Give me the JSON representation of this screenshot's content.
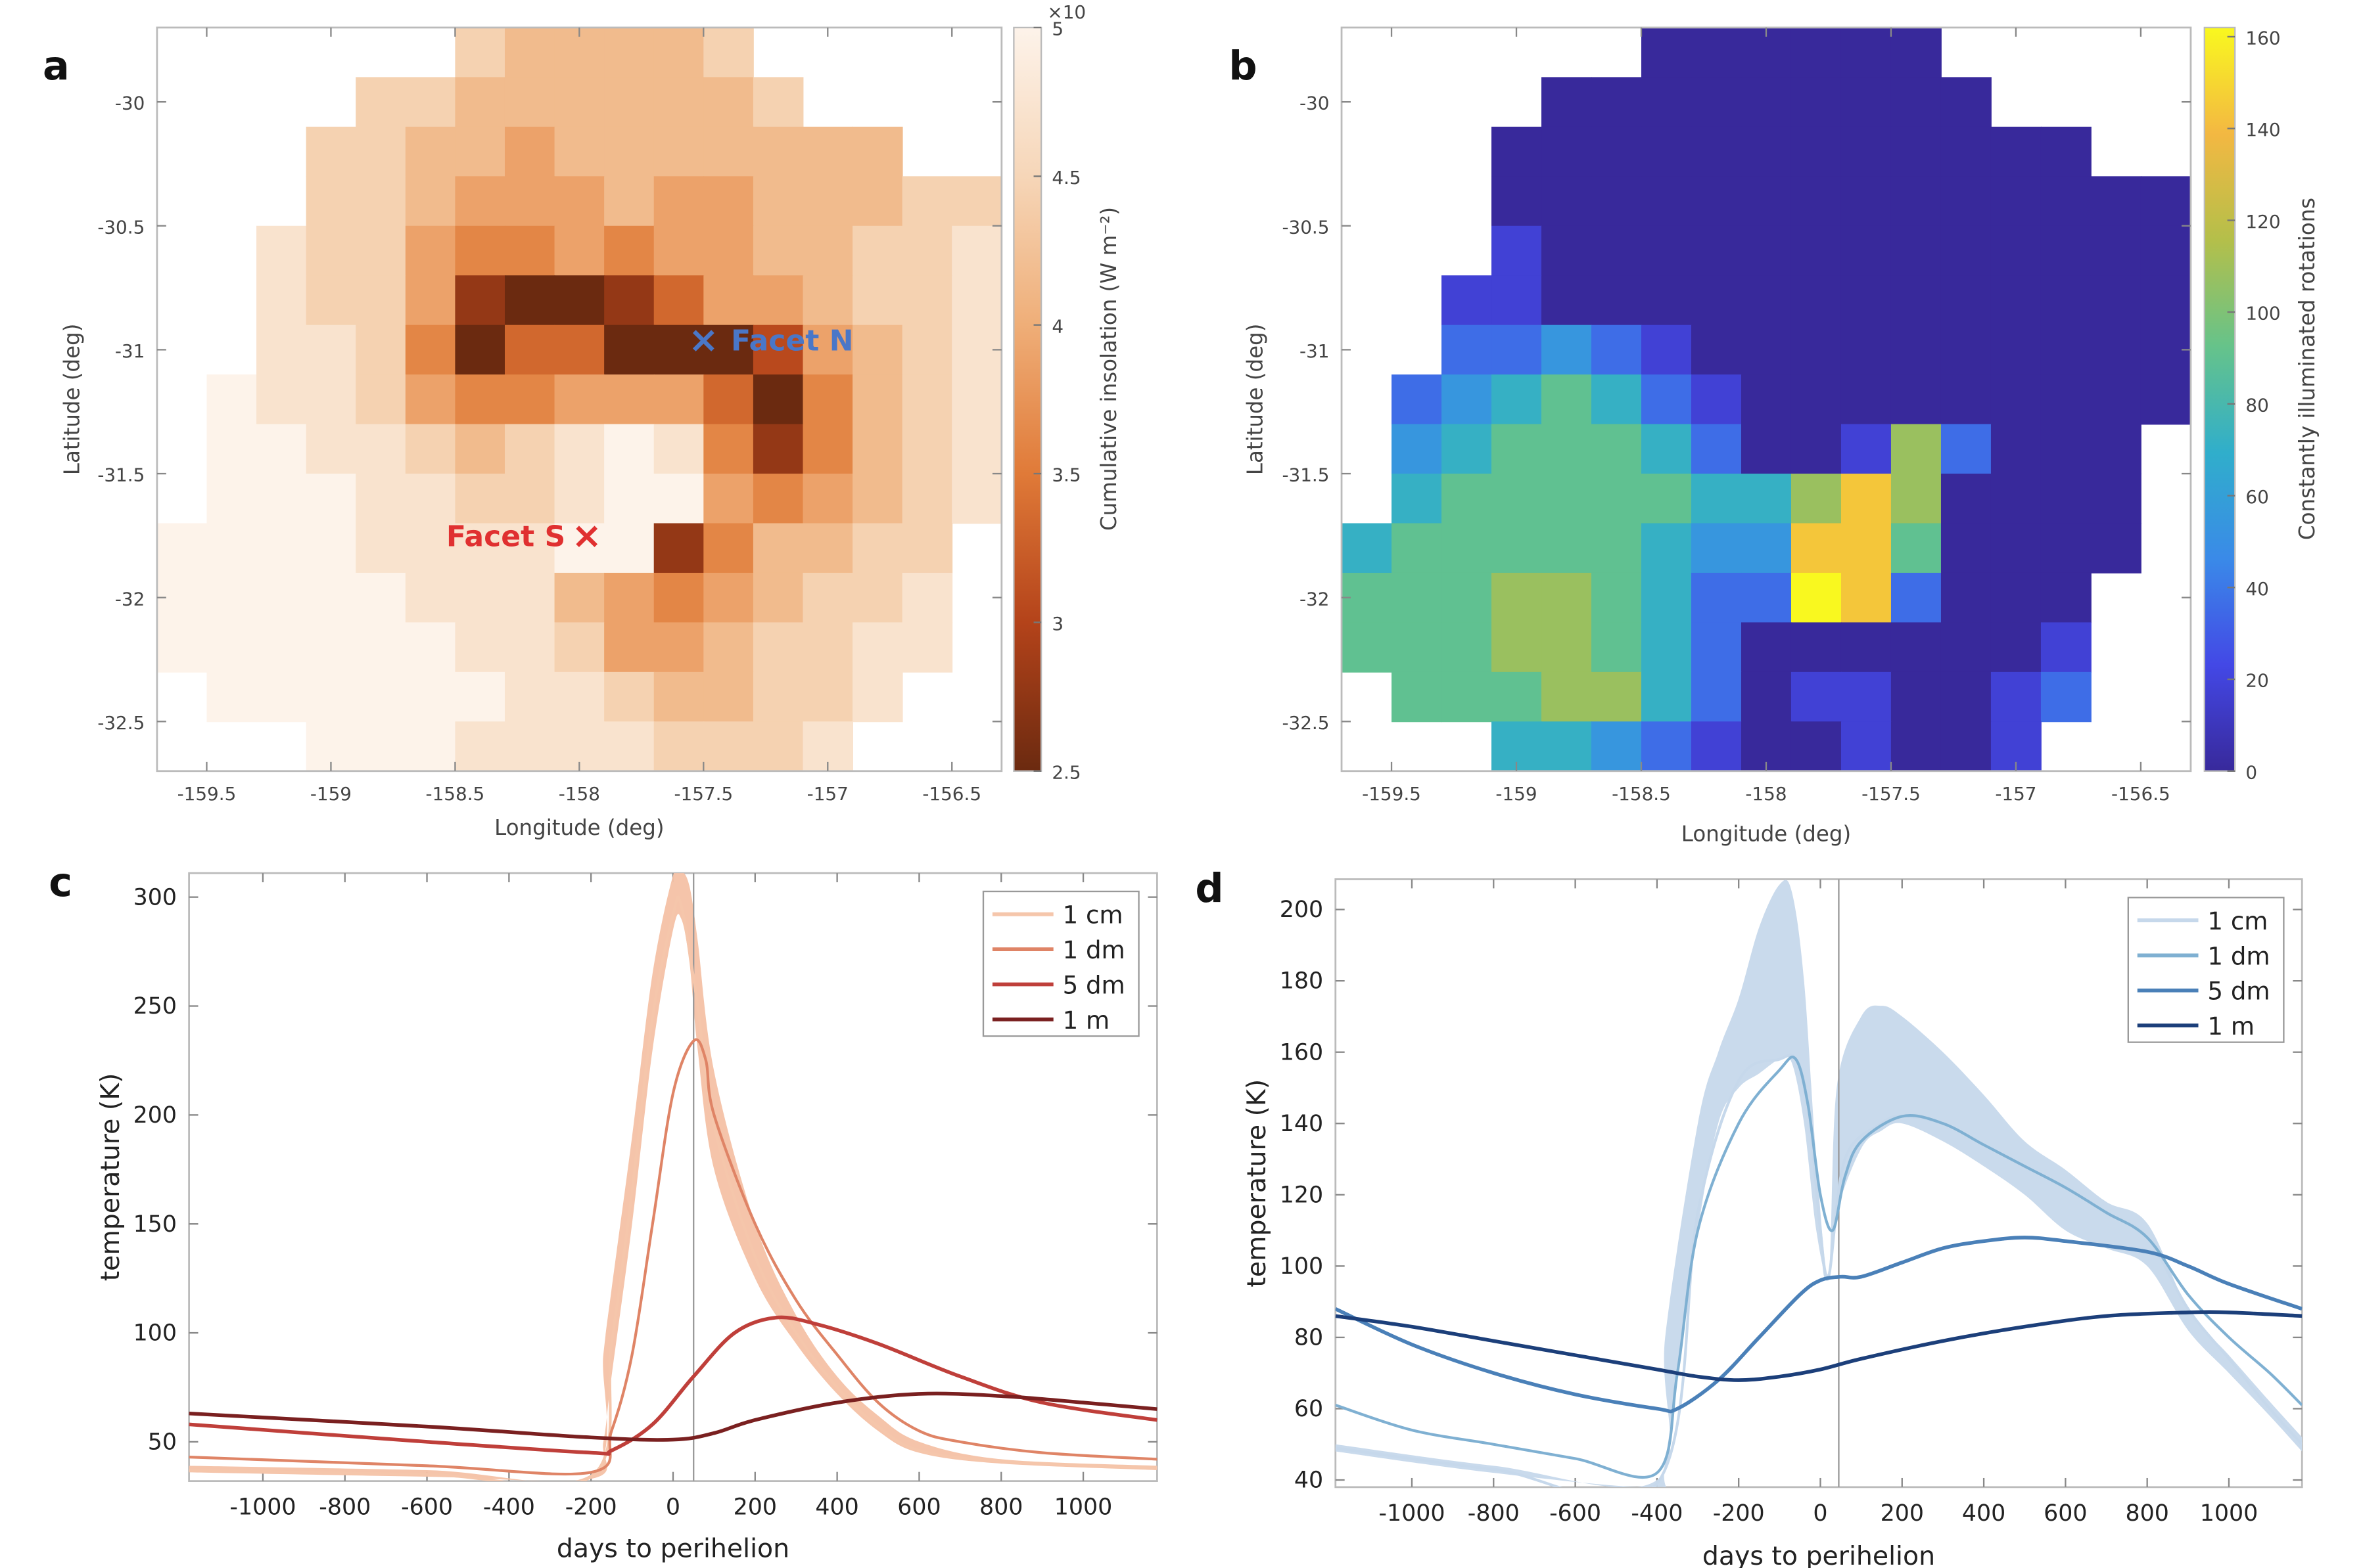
{
  "panels": {
    "a": {
      "label": "a"
    },
    "b": {
      "label": "b"
    },
    "c": {
      "label": "c"
    },
    "d": {
      "label": "d"
    }
  },
  "chart_data": [
    {
      "id": "a",
      "type": "heatmap",
      "xlabel": "Longitude (deg)",
      "ylabel": "Latitude (deg)",
      "xlim": [
        -159.7,
        -156.3
      ],
      "ylim": [
        -32.7,
        -29.7
      ],
      "cell_size_deg": 0.2,
      "xticks": [
        -159.5,
        -159,
        -158.5,
        -158,
        -157.5,
        -157,
        -156.5
      ],
      "xtick_labels": [
        "-159.5",
        "-159",
        "-158.5",
        "-158",
        "-157.5",
        "-157",
        "-156.5"
      ],
      "yticks": [
        -30,
        -30.5,
        -31,
        -31.5,
        -32,
        -32.5
      ],
      "ytick_labels": [
        "-30",
        "-30.5",
        "-31",
        "-31.5",
        "-32",
        "-32.5"
      ],
      "colorbar": {
        "label": "Cumulative insolation (W m⁻²)",
        "multiplier": "×10",
        "range": [
          2.5,
          5
        ],
        "ticks": [
          2.5,
          3,
          3.5,
          4,
          4.5,
          5
        ],
        "tick_labels": [
          "2.5",
          "3",
          "3.5",
          "4",
          "4.5",
          "5"
        ],
        "colors": [
          "#6b2a10",
          "#b4431a",
          "#e07a38",
          "#efae78",
          "#f6d6b8",
          "#fdf3ea"
        ]
      },
      "grid_encoding": "digits 0-9 map linearly onto colorbar range; '.' = no data; rows top (north) to bottom",
      "grid": [
        "......766667.....",
        "....776666667....",
        "...776656666666..",
        "...77655565566677",
        "..877544545566778",
        "..877510013556778",
        "..887403300025678",
        ".9887544555304678",
        ".9988767898414678",
        ".9998877899545678",
        "9999888899146677.",
        "9999988865456778.",
        "9999998875567788.",
        ".99999988766778..",
        "...99988887778..."
      ],
      "annotations": [
        {
          "text": "Facet N",
          "lon": -157.5,
          "lat": -30.96,
          "color": "#4a77c8",
          "marker": "×",
          "side": "right"
        },
        {
          "text": "Facet S",
          "lon": -157.97,
          "lat": -31.75,
          "color": "#e03030",
          "marker": "×",
          "side": "left"
        }
      ]
    },
    {
      "id": "b",
      "type": "heatmap",
      "xlabel": "Longitude (deg)",
      "ylabel": "Latitude (deg)",
      "xlim": [
        -159.7,
        -156.3
      ],
      "ylim": [
        -32.7,
        -29.7
      ],
      "cell_size_deg": 0.2,
      "xticks": [
        -159.5,
        -159,
        -158.5,
        -158,
        -157.5,
        -157,
        -156.5
      ],
      "xtick_labels": [
        "-159.5",
        "-159",
        "-158.5",
        "-158",
        "-157.5",
        "-157",
        "-156.5"
      ],
      "yticks": [
        -30,
        -30.5,
        -31,
        -31.5,
        -32,
        -32.5
      ],
      "ytick_labels": [
        "-30",
        "-30.5",
        "-31",
        "-31.5",
        "-32",
        "-32.5"
      ],
      "colorbar": {
        "label": "Constantly illuminated rotations",
        "range": [
          0,
          162
        ],
        "ticks": [
          0,
          20,
          40,
          60,
          80,
          100,
          120,
          140,
          160
        ],
        "tick_labels": [
          "0",
          "20",
          "40",
          "60",
          "80",
          "100",
          "120",
          "140",
          "160"
        ],
        "colors": [
          "#38299b",
          "#4348e6",
          "#3a8ae8",
          "#30aecb",
          "#66c38a",
          "#b4bf4a",
          "#f3b842",
          "#f9f81f"
        ]
      },
      "grid_encoding": "digits 0-9 map linearly onto colorbar range; '.' = no data; rows top (north) to bottom",
      "grid": [
        "......000000.....",
        "....000000000....",
        "...000000000000..",
        "...00000000000000",
        "...10000000000000",
        "..110000000000000",
        "..223210000000000",
        ".2345421000000000",
        ".345554200162000.",
        ".455555446860000.",
        "4555554338850000.",
        "555665422982000..",
        "555665420000001..",
        ".55566420110012..",
        "...44321001001..."
      ]
    },
    {
      "id": "c",
      "type": "line",
      "xlabel": "days to perihelion",
      "ylabel": "temperature (K)",
      "xlim": [
        -1180,
        1180
      ],
      "ylim": [
        32,
        311
      ],
      "xticks": [
        -1000,
        -800,
        -600,
        -400,
        -200,
        0,
        200,
        400,
        600,
        800,
        1000
      ],
      "xtick_labels": [
        "-1000",
        "-800",
        "-600",
        "-400",
        "-200",
        "0",
        "200",
        "400",
        "600",
        "800",
        "1000"
      ],
      "yticks": [
        50,
        100,
        150,
        200,
        250,
        300
      ],
      "ytick_labels": [
        "50",
        "100",
        "150",
        "200",
        "250",
        "300"
      ],
      "vline_x": 50,
      "legend_position": "top-right",
      "band": {
        "series": "1 cm",
        "color": "#f4c1a5",
        "x": [
          -1180,
          -600,
          -200,
          -170,
          -150,
          -100,
          -50,
          0,
          20,
          40,
          60,
          100,
          200,
          300,
          400,
          500,
          600,
          800,
          1180
        ],
        "lower": [
          36,
          34,
          33,
          50,
          80,
          150,
          230,
          285,
          290,
          270,
          230,
          175,
          125,
          95,
          72,
          55,
          45,
          40,
          37
        ],
        "upper": [
          39,
          37,
          35,
          90,
          120,
          190,
          265,
          310,
          312,
          305,
          280,
          220,
          150,
          108,
          80,
          62,
          50,
          42,
          39
        ]
      },
      "series": [
        {
          "name": "1 cm",
          "color": "#f5c6ab",
          "x": [
            -1180,
            -600,
            -200,
            -150,
            -100,
            -50,
            0,
            20,
            60,
            100,
            200,
            300,
            400,
            500,
            600,
            800,
            1180
          ],
          "values": [
            37,
            35,
            34,
            95,
            165,
            245,
            292,
            296,
            250,
            195,
            135,
            100,
            75,
            57,
            46,
            41,
            38
          ]
        },
        {
          "name": "1 dm",
          "color": "#df8466",
          "x": [
            -1180,
            -600,
            -200,
            -150,
            -100,
            -50,
            0,
            50,
            80,
            100,
            200,
            300,
            400,
            500,
            600,
            700,
            900,
            1180
          ],
          "values": [
            43,
            39,
            36,
            55,
            90,
            150,
            210,
            234,
            225,
            200,
            150,
            115,
            90,
            68,
            55,
            50,
            45,
            42
          ]
        },
        {
          "name": "5 dm",
          "color": "#bf3f3a",
          "x": [
            -1180,
            -600,
            -200,
            -150,
            -50,
            50,
            150,
            250,
            350,
            500,
            700,
            900,
            1180
          ],
          "values": [
            58,
            50,
            45,
            46,
            58,
            80,
            100,
            107,
            104,
            95,
            80,
            68,
            60
          ]
        },
        {
          "name": "1 m",
          "color": "#7a2020",
          "x": [
            -1180,
            -600,
            -200,
            0,
            100,
            200,
            400,
            600,
            800,
            1000,
            1180
          ],
          "values": [
            63,
            57,
            52,
            51,
            54,
            60,
            68,
            72,
            71,
            68,
            65
          ]
        }
      ]
    },
    {
      "id": "d",
      "type": "line",
      "xlabel": "days to perihelion",
      "ylabel": "temperature (K)",
      "xlim": [
        -1187,
        1179
      ],
      "ylim": [
        38,
        208.5
      ],
      "xticks": [
        -1000,
        -800,
        -600,
        -400,
        -200,
        0,
        200,
        400,
        600,
        800,
        1000
      ],
      "xtick_labels": [
        "-1000",
        "-800",
        "-600",
        "-400",
        "-200",
        "0",
        "200",
        "400",
        "600",
        "800",
        "1000"
      ],
      "yticks": [
        40,
        60,
        80,
        100,
        120,
        140,
        160,
        180,
        200
      ],
      "ytick_labels": [
        "40",
        "60",
        "80",
        "100",
        "120",
        "140",
        "160",
        "180",
        "200"
      ],
      "vline_x": 45,
      "legend_position": "top-right",
      "band": {
        "series": "1 cm",
        "color": "#c6d8eb",
        "x": [
          -1187,
          -800,
          -400,
          -380,
          -300,
          -250,
          -200,
          -150,
          -100,
          -70,
          -40,
          -10,
          20,
          40,
          100,
          150,
          200,
          300,
          400,
          500,
          600,
          700,
          800,
          900,
          1000,
          1100,
          1179
        ],
        "lower": [
          48,
          42,
          38,
          45,
          110,
          140,
          150,
          154,
          158,
          157,
          140,
          110,
          96,
          115,
          133,
          138,
          140,
          135,
          128,
          120,
          110,
          105,
          100,
          82,
          70,
          58,
          48
        ],
        "upper": [
          50,
          44,
          40,
          80,
          140,
          160,
          175,
          195,
          207,
          205,
          180,
          130,
          98,
          150,
          170,
          173,
          170,
          160,
          148,
          135,
          127,
          118,
          112,
          88,
          75,
          62,
          52
        ]
      },
      "series": [
        {
          "name": "1 cm",
          "color": "#c6d8eb",
          "x": [
            -1187,
            -800,
            -400,
            -300,
            -200,
            -100,
            -60,
            -30,
            0,
            20,
            60,
            150,
            200,
            300,
            400,
            500,
            600,
            700,
            800,
            900,
            1000,
            1100,
            1179
          ],
          "values": [
            49,
            43,
            39,
            115,
            152,
            158,
            158,
            145,
            110,
            97,
            130,
            140,
            142,
            140,
            134,
            128,
            122,
            115,
            108,
            88,
            74,
            60,
            50
          ]
        },
        {
          "name": "1 dm",
          "color": "#7fb0d2",
          "x": [
            -1187,
            -1000,
            -800,
            -600,
            -400,
            -350,
            -300,
            -200,
            -100,
            -60,
            -30,
            0,
            30,
            60,
            100,
            200,
            300,
            400,
            500,
            600,
            700,
            800,
            900,
            1000,
            1100,
            1179
          ],
          "values": [
            61,
            54,
            50,
            46,
            42,
            70,
            110,
            140,
            155,
            158,
            145,
            120,
            110,
            125,
            135,
            142,
            140,
            134,
            128,
            122,
            115,
            108,
            92,
            80,
            70,
            61
          ]
        },
        {
          "name": "5 dm",
          "color": "#4a80b8",
          "x": [
            -1187,
            -1000,
            -800,
            -600,
            -400,
            -350,
            -250,
            -150,
            -50,
            0,
            50,
            100,
            200,
            300,
            400,
            500,
            600,
            800,
            900,
            1000,
            1179
          ],
          "values": [
            88,
            78,
            70,
            64,
            60,
            60,
            68,
            80,
            92,
            96,
            97,
            97,
            101,
            105,
            107,
            108,
            107,
            104,
            100,
            95,
            88
          ]
        },
        {
          "name": "1 m",
          "color": "#1c3f7a",
          "x": [
            -1187,
            -1000,
            -800,
            -600,
            -400,
            -300,
            -200,
            -100,
            0,
            100,
            300,
            500,
            700,
            900,
            1000,
            1179
          ],
          "values": [
            86,
            83,
            79,
            75,
            71,
            69,
            68,
            69,
            71,
            74,
            79,
            83,
            86,
            87,
            87,
            86
          ]
        }
      ]
    }
  ]
}
